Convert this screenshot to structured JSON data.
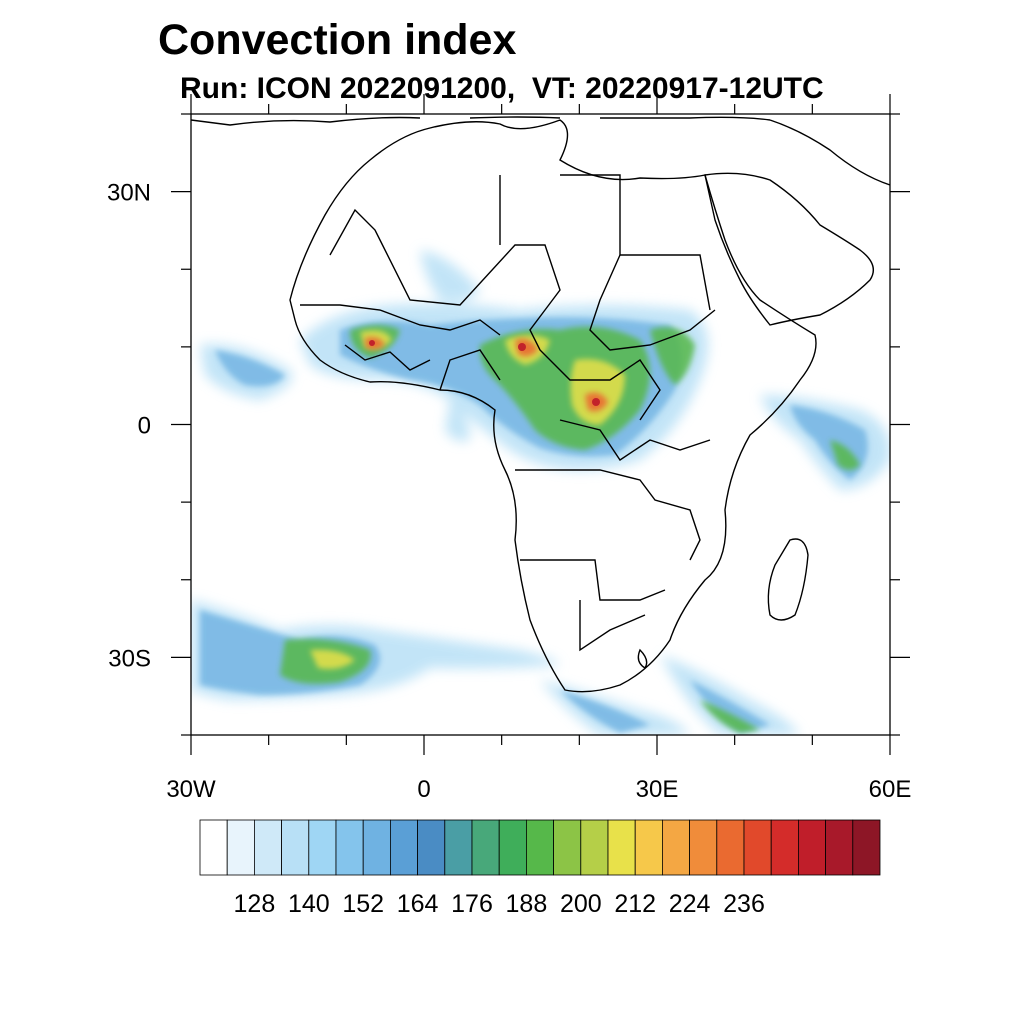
{
  "title": "Convection index",
  "subtitle": "Run: ICON 2022091200,  VT: 20220917-12UTC",
  "map": {
    "region": "Africa",
    "lon_range": [
      -30,
      60
    ],
    "lat_range": [
      -40,
      40
    ],
    "x_ticks": [
      {
        "lon": -30,
        "label": "30W"
      },
      {
        "lon": 0,
        "label": "0"
      },
      {
        "lon": 30,
        "label": "30E"
      },
      {
        "lon": 60,
        "label": "60E"
      }
    ],
    "y_ticks": [
      {
        "lat": 30,
        "label": "30N"
      },
      {
        "lat": 0,
        "label": "0"
      },
      {
        "lat": -30,
        "label": "30S"
      }
    ],
    "minor_lon_step": 10,
    "minor_lat_step": 10
  },
  "colorbar": {
    "labels": [
      "128",
      "140",
      "152",
      "164",
      "176",
      "188",
      "200",
      "212",
      "224",
      "236"
    ],
    "colors": [
      "#ffffff",
      "#e8f4fc",
      "#cfe9f8",
      "#b8e0f6",
      "#9fd6f4",
      "#84c4ec",
      "#6fb2e2",
      "#5a9fd6",
      "#4a8cc4",
      "#4a9ea5",
      "#48a87a",
      "#3fae5a",
      "#56b84a",
      "#8cc446",
      "#b5cf48",
      "#e8e14a",
      "#f6c84a",
      "#f4a743",
      "#f08c3a",
      "#ea6a30",
      "#e1492b",
      "#d42c2a",
      "#c01e2a",
      "#a8192a",
      "#8d1626"
    ]
  }
}
